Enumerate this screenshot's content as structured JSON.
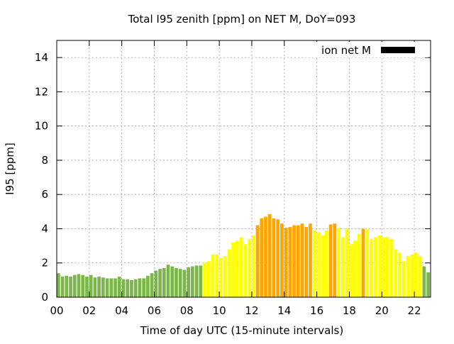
{
  "chart_data": {
    "type": "bar",
    "title": "Total I95 zenith [ppm] on NET M, DoY=093",
    "xlabel": "Time of day UTC (15-minute intervals)",
    "ylabel": "I95 [ppm]",
    "ylim": [
      0,
      15
    ],
    "xlim_hours": [
      0,
      23
    ],
    "bar_interval_hours": 0.25,
    "x_ticks": [
      {
        "hour": 0,
        "label": "00"
      },
      {
        "hour": 2,
        "label": "02"
      },
      {
        "hour": 4,
        "label": "04"
      },
      {
        "hour": 6,
        "label": "06"
      },
      {
        "hour": 8,
        "label": "08"
      },
      {
        "hour": 10,
        "label": "10"
      },
      {
        "hour": 12,
        "label": "12"
      },
      {
        "hour": 14,
        "label": "14"
      },
      {
        "hour": 16,
        "label": "16"
      },
      {
        "hour": 18,
        "label": "18"
      },
      {
        "hour": 20,
        "label": "20"
      },
      {
        "hour": 22,
        "label": "22"
      }
    ],
    "y_ticks": [
      {
        "value": 0,
        "label": "0"
      },
      {
        "value": 2,
        "label": "2"
      },
      {
        "value": 4,
        "label": "4"
      },
      {
        "value": 6,
        "label": "6"
      },
      {
        "value": 8,
        "label": "8"
      },
      {
        "value": 10,
        "label": "10"
      },
      {
        "value": 12,
        "label": "12"
      },
      {
        "value": 14,
        "label": "14"
      }
    ],
    "grid": true,
    "legend": {
      "label": "ion net M",
      "color": "#000000",
      "placement": "top-right"
    },
    "level_colors": {
      "low": "#7ab648",
      "moderate": "#ffff00",
      "high": "#ffa500"
    },
    "values": [
      1.4,
      1.2,
      1.25,
      1.2,
      1.3,
      1.35,
      1.3,
      1.2,
      1.3,
      1.15,
      1.2,
      1.15,
      1.1,
      1.1,
      1.1,
      1.2,
      1.05,
      1.05,
      1.0,
      1.05,
      1.1,
      1.1,
      1.25,
      1.4,
      1.55,
      1.65,
      1.7,
      1.9,
      1.8,
      1.7,
      1.65,
      1.6,
      1.75,
      1.8,
      1.85,
      1.85,
      2.0,
      2.1,
      2.5,
      2.5,
      2.3,
      2.4,
      2.8,
      3.2,
      3.3,
      3.5,
      3.1,
      3.4,
      3.6,
      4.2,
      4.6,
      4.7,
      4.85,
      4.6,
      4.55,
      4.3,
      4.05,
      4.1,
      4.2,
      4.2,
      4.3,
      4.1,
      4.3,
      3.9,
      3.8,
      3.6,
      3.9,
      4.25,
      4.3,
      4.05,
      3.5,
      4.0,
      3.1,
      3.3,
      3.7,
      4.0,
      4.0,
      3.4,
      3.5,
      3.6,
      3.5,
      3.5,
      3.4,
      2.8,
      2.6,
      2.1,
      2.4,
      2.5,
      2.6,
      2.4,
      1.8,
      1.45
    ],
    "levels": [
      "low",
      "low",
      "low",
      "low",
      "low",
      "low",
      "low",
      "low",
      "low",
      "low",
      "low",
      "low",
      "low",
      "low",
      "low",
      "low",
      "low",
      "low",
      "low",
      "low",
      "low",
      "low",
      "low",
      "low",
      "low",
      "low",
      "low",
      "low",
      "low",
      "low",
      "low",
      "low",
      "low",
      "low",
      "low",
      "low",
      "moderate",
      "moderate",
      "moderate",
      "moderate",
      "moderate",
      "moderate",
      "moderate",
      "moderate",
      "moderate",
      "moderate",
      "moderate",
      "moderate",
      "moderate",
      "high",
      "high",
      "high",
      "high",
      "high",
      "high",
      "high",
      "high",
      "high",
      "high",
      "high",
      "high",
      "high",
      "high",
      "moderate",
      "moderate",
      "moderate",
      "moderate",
      "high",
      "high",
      "moderate",
      "moderate",
      "moderate",
      "moderate",
      "moderate",
      "moderate",
      "high",
      "moderate",
      "moderate",
      "moderate",
      "moderate",
      "moderate",
      "moderate",
      "moderate",
      "moderate",
      "moderate",
      "moderate",
      "moderate",
      "moderate",
      "moderate",
      "moderate",
      "low",
      "low"
    ]
  }
}
